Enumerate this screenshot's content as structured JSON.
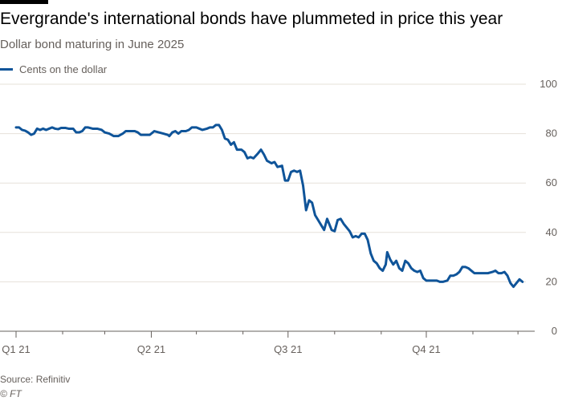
{
  "title": "Evergrande's international bonds have plummeted in price this year",
  "subtitle": "Dollar bond maturing in June 2025",
  "source": "Source: Refinitiv",
  "credit": "© FT",
  "colors": {
    "series": "#0f5499",
    "grid": "#e6e0d9",
    "axis": "#66605c",
    "text": "#66605c"
  },
  "chart_data": {
    "type": "line",
    "title": "Evergrande's international bonds have plummeted in price this year",
    "subtitle": "Dollar bond maturing in June 2025",
    "ylim": [
      0,
      100
    ],
    "y_ticks": [
      0,
      20,
      40,
      60,
      80,
      100
    ],
    "y_axis_side": "right",
    "grid": "horizontal",
    "legend_position": "top-left",
    "x_range": [
      "2021-01-01",
      "2021-12-10"
    ],
    "x_ticks": [
      {
        "label": "Q1 21",
        "date": "2021-01-01"
      },
      {
        "label": "Q2 21",
        "date": "2021-04-01"
      },
      {
        "label": "Q3 21",
        "date": "2021-07-01"
      },
      {
        "label": "Q4 21",
        "date": "2021-10-01"
      }
    ],
    "series": [
      {
        "name": "Cents on the dollar",
        "points": [
          [
            "2021-01-01",
            82.5
          ],
          [
            "2021-01-03",
            82.5
          ],
          [
            "2021-01-05",
            81.5
          ],
          [
            "2021-01-07",
            81.2
          ],
          [
            "2021-01-09",
            80.5
          ],
          [
            "2021-01-11",
            79.5
          ],
          [
            "2021-01-13",
            80.0
          ],
          [
            "2021-01-15",
            82.0
          ],
          [
            "2021-01-17",
            81.5
          ],
          [
            "2021-01-19",
            82.0
          ],
          [
            "2021-01-21",
            81.5
          ],
          [
            "2021-01-23",
            82.0
          ],
          [
            "2021-01-25",
            82.5
          ],
          [
            "2021-01-27",
            82.0
          ],
          [
            "2021-01-29",
            81.8
          ],
          [
            "2021-01-31",
            82.3
          ],
          [
            "2021-02-03",
            82.3
          ],
          [
            "2021-02-05",
            82.0
          ],
          [
            "2021-02-08",
            82.0
          ],
          [
            "2021-02-10",
            80.5
          ],
          [
            "2021-02-12",
            80.5
          ],
          [
            "2021-02-14",
            81.0
          ],
          [
            "2021-02-16",
            82.5
          ],
          [
            "2021-02-18",
            82.5
          ],
          [
            "2021-02-21",
            82.0
          ],
          [
            "2021-02-24",
            82.0
          ],
          [
            "2021-02-27",
            81.5
          ],
          [
            "2021-03-01",
            80.5
          ],
          [
            "2021-03-04",
            80.0
          ],
          [
            "2021-03-07",
            79.0
          ],
          [
            "2021-03-10",
            79.0
          ],
          [
            "2021-03-13",
            80.0
          ],
          [
            "2021-03-15",
            81.0
          ],
          [
            "2021-03-18",
            81.0
          ],
          [
            "2021-03-21",
            81.0
          ],
          [
            "2021-03-23",
            80.5
          ],
          [
            "2021-03-25",
            79.5
          ],
          [
            "2021-03-28",
            79.5
          ],
          [
            "2021-03-31",
            79.5
          ],
          [
            "2021-04-03",
            81.0
          ],
          [
            "2021-04-06",
            80.5
          ],
          [
            "2021-04-09",
            80.0
          ],
          [
            "2021-04-12",
            79.5
          ],
          [
            "2021-04-13",
            79.0
          ],
          [
            "2021-04-15",
            80.5
          ],
          [
            "2021-04-17",
            81.0
          ],
          [
            "2021-04-19",
            80.0
          ],
          [
            "2021-04-21",
            81.0
          ],
          [
            "2021-04-24",
            81.0
          ],
          [
            "2021-04-26",
            81.5
          ],
          [
            "2021-04-28",
            82.5
          ],
          [
            "2021-05-01",
            82.5
          ],
          [
            "2021-05-03",
            82.0
          ],
          [
            "2021-05-05",
            81.5
          ],
          [
            "2021-05-08",
            82.0
          ],
          [
            "2021-05-10",
            82.5
          ],
          [
            "2021-05-12",
            82.5
          ],
          [
            "2021-05-14",
            83.5
          ],
          [
            "2021-05-16",
            83.5
          ],
          [
            "2021-05-18",
            81.5
          ],
          [
            "2021-05-20",
            78.0
          ],
          [
            "2021-05-22",
            77.5
          ],
          [
            "2021-05-24",
            75.5
          ],
          [
            "2021-05-26",
            76.5
          ],
          [
            "2021-05-28",
            73.5
          ],
          [
            "2021-05-31",
            73.5
          ],
          [
            "2021-06-02",
            72.5
          ],
          [
            "2021-06-04",
            70.0
          ],
          [
            "2021-06-06",
            70.5
          ],
          [
            "2021-06-08",
            70.0
          ],
          [
            "2021-06-11",
            72.0
          ],
          [
            "2021-06-13",
            73.5
          ],
          [
            "2021-06-15",
            71.5
          ],
          [
            "2021-06-17",
            69.0
          ],
          [
            "2021-06-20",
            68.0
          ],
          [
            "2021-06-22",
            68.5
          ],
          [
            "2021-06-24",
            66.5
          ],
          [
            "2021-06-27",
            67.0
          ],
          [
            "2021-06-29",
            61.0
          ],
          [
            "2021-07-01",
            61.0
          ],
          [
            "2021-07-03",
            64.5
          ],
          [
            "2021-07-05",
            65.0
          ],
          [
            "2021-07-07",
            64.5
          ],
          [
            "2021-07-09",
            65.0
          ],
          [
            "2021-07-11",
            59.0
          ],
          [
            "2021-07-13",
            49.0
          ],
          [
            "2021-07-15",
            53.0
          ],
          [
            "2021-07-17",
            52.0
          ],
          [
            "2021-07-19",
            47.0
          ],
          [
            "2021-07-21",
            45.0
          ],
          [
            "2021-07-23",
            43.0
          ],
          [
            "2021-07-25",
            41.0
          ],
          [
            "2021-07-27",
            45.5
          ],
          [
            "2021-07-28",
            44.0
          ],
          [
            "2021-07-30",
            41.0
          ],
          [
            "2021-08-01",
            40.5
          ],
          [
            "2021-08-03",
            45.0
          ],
          [
            "2021-08-05",
            45.5
          ],
          [
            "2021-08-07",
            43.5
          ],
          [
            "2021-08-09",
            42.0
          ],
          [
            "2021-08-11",
            40.5
          ],
          [
            "2021-08-13",
            38.0
          ],
          [
            "2021-08-15",
            38.5
          ],
          [
            "2021-08-17",
            38.0
          ],
          [
            "2021-08-19",
            39.5
          ],
          [
            "2021-08-21",
            39.5
          ],
          [
            "2021-08-23",
            37.0
          ],
          [
            "2021-08-25",
            31.5
          ],
          [
            "2021-08-27",
            28.5
          ],
          [
            "2021-08-29",
            27.5
          ],
          [
            "2021-08-31",
            25.5
          ],
          [
            "2021-09-02",
            24.5
          ],
          [
            "2021-09-04",
            27.0
          ],
          [
            "2021-09-05",
            32.0
          ],
          [
            "2021-09-07",
            29.0
          ],
          [
            "2021-09-09",
            27.0
          ],
          [
            "2021-09-11",
            28.5
          ],
          [
            "2021-09-13",
            25.5
          ],
          [
            "2021-09-15",
            24.5
          ],
          [
            "2021-09-17",
            28.5
          ],
          [
            "2021-09-19",
            27.5
          ],
          [
            "2021-09-21",
            25.5
          ],
          [
            "2021-09-23",
            24.5
          ],
          [
            "2021-09-25",
            24.0
          ],
          [
            "2021-09-27",
            24.5
          ],
          [
            "2021-09-29",
            21.5
          ],
          [
            "2021-10-01",
            20.5
          ],
          [
            "2021-10-03",
            20.5
          ],
          [
            "2021-10-05",
            20.5
          ],
          [
            "2021-10-08",
            20.5
          ],
          [
            "2021-10-10",
            20.0
          ],
          [
            "2021-10-12",
            20.0
          ],
          [
            "2021-10-15",
            20.5
          ],
          [
            "2021-10-17",
            22.5
          ],
          [
            "2021-10-19",
            22.5
          ],
          [
            "2021-10-21",
            23.0
          ],
          [
            "2021-10-23",
            24.0
          ],
          [
            "2021-10-25",
            26.0
          ],
          [
            "2021-10-27",
            26.0
          ],
          [
            "2021-10-29",
            25.5
          ],
          [
            "2021-10-31",
            24.5
          ],
          [
            "2021-11-02",
            23.5
          ],
          [
            "2021-11-05",
            23.5
          ],
          [
            "2021-11-08",
            23.5
          ],
          [
            "2021-11-11",
            23.5
          ],
          [
            "2021-11-14",
            24.0
          ],
          [
            "2021-11-16",
            24.5
          ],
          [
            "2021-11-18",
            23.5
          ],
          [
            "2021-11-20",
            23.5
          ],
          [
            "2021-11-22",
            24.0
          ],
          [
            "2021-11-24",
            22.5
          ],
          [
            "2021-11-26",
            19.5
          ],
          [
            "2021-11-28",
            18.0
          ],
          [
            "2021-11-30",
            19.5
          ],
          [
            "2021-12-02",
            21.0
          ],
          [
            "2021-12-04",
            20.0
          ]
        ]
      }
    ]
  }
}
